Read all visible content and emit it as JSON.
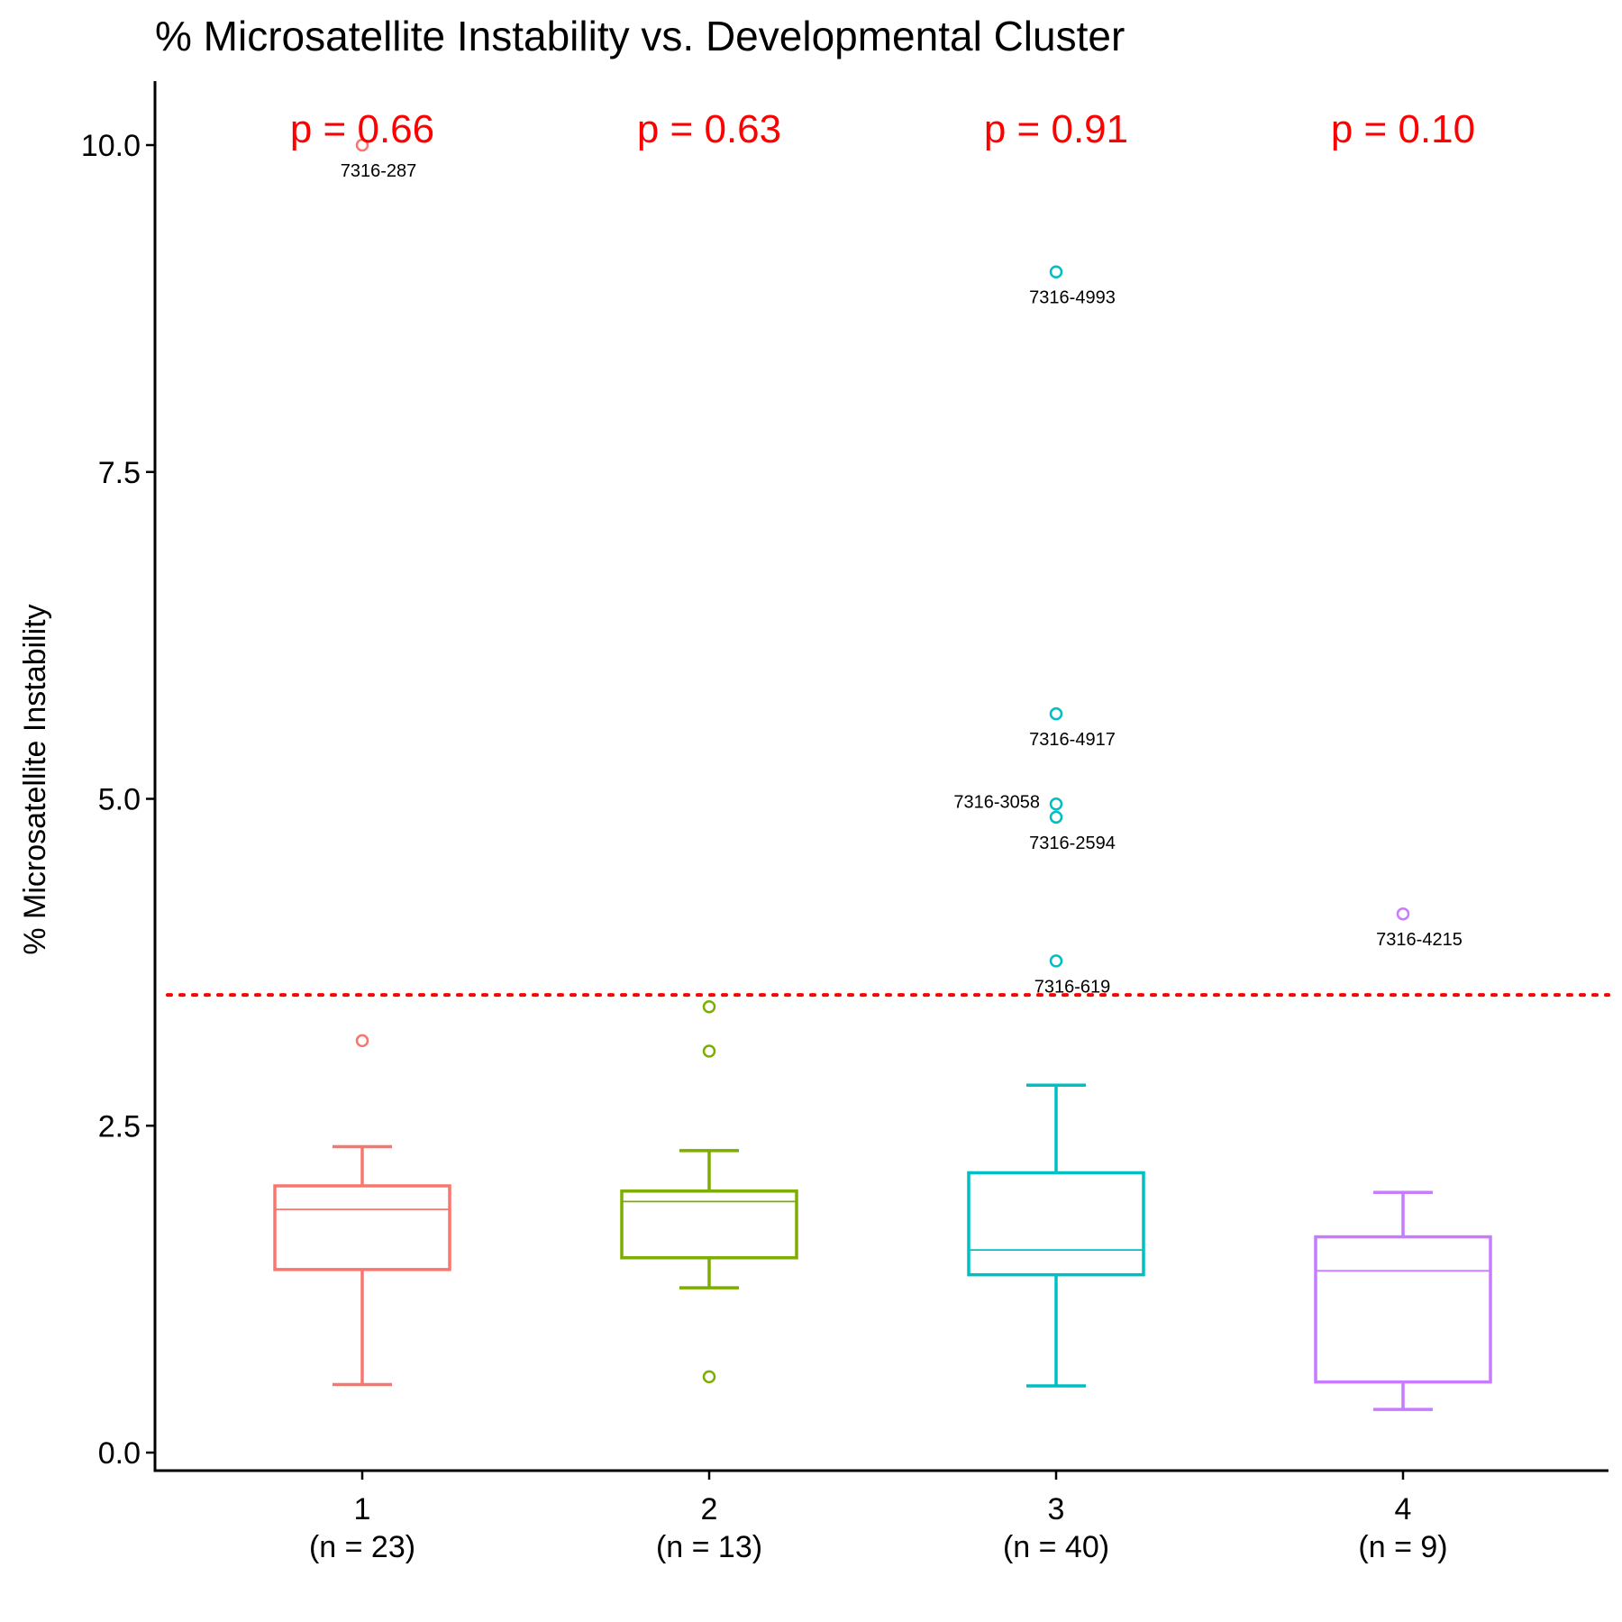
{
  "chart_data": {
    "type": "boxplot",
    "title": "% Microsatellite Instability vs. Developmental Cluster",
    "xlabel": "",
    "ylabel": "% Microsatellite Instability",
    "ylim": [
      -0.15,
      10.5
    ],
    "yticks": [
      0.0,
      2.5,
      5.0,
      7.5,
      10.0
    ],
    "ytick_labels": [
      "0.0",
      "2.5",
      "5.0",
      "7.5",
      "10.0"
    ],
    "grid": false,
    "legend": "none",
    "threshold": {
      "value": 3.5,
      "color": "#ff0000",
      "style": "dotted"
    },
    "groups": [
      {
        "category": "1",
        "n_label": "(n = 23)",
        "color": "#f8766d",
        "whisker_low": 0.52,
        "q1": 1.4,
        "median": 1.86,
        "q3": 2.04,
        "whisker_high": 2.34,
        "outliers": [
          {
            "value": 10.0,
            "label": "7316-287"
          },
          {
            "value": 3.15,
            "label": ""
          }
        ],
        "p_value": "p = 0.66"
      },
      {
        "category": "2",
        "n_label": "(n = 13)",
        "color": "#7cae00",
        "whisker_low": 1.26,
        "q1": 1.49,
        "median": 1.92,
        "q3": 2.0,
        "whisker_high": 2.31,
        "outliers": [
          {
            "value": 3.41,
            "label": ""
          },
          {
            "value": 3.07,
            "label": ""
          },
          {
            "value": 0.58,
            "label": ""
          }
        ],
        "p_value": "p = 0.63"
      },
      {
        "category": "3",
        "n_label": "(n = 40)",
        "color": "#00bfc4",
        "whisker_low": 0.51,
        "q1": 1.36,
        "median": 1.55,
        "q3": 2.14,
        "whisker_high": 2.81,
        "outliers": [
          {
            "value": 9.03,
            "label": "7316-4993"
          },
          {
            "value": 5.65,
            "label": "7316-4917"
          },
          {
            "value": 4.96,
            "label": "7316-3058"
          },
          {
            "value": 4.86,
            "label": "7316-2594"
          },
          {
            "value": 3.76,
            "label": "7316-619"
          }
        ],
        "p_value": "p = 0.91"
      },
      {
        "category": "4",
        "n_label": "(n = 9)",
        "color": "#c77cff",
        "whisker_low": 0.33,
        "q1": 0.54,
        "median": 1.39,
        "q3": 1.65,
        "whisker_high": 1.99,
        "outliers": [
          {
            "value": 4.12,
            "label": "7316-4215"
          }
        ],
        "p_value": "p = 0.10"
      }
    ]
  }
}
